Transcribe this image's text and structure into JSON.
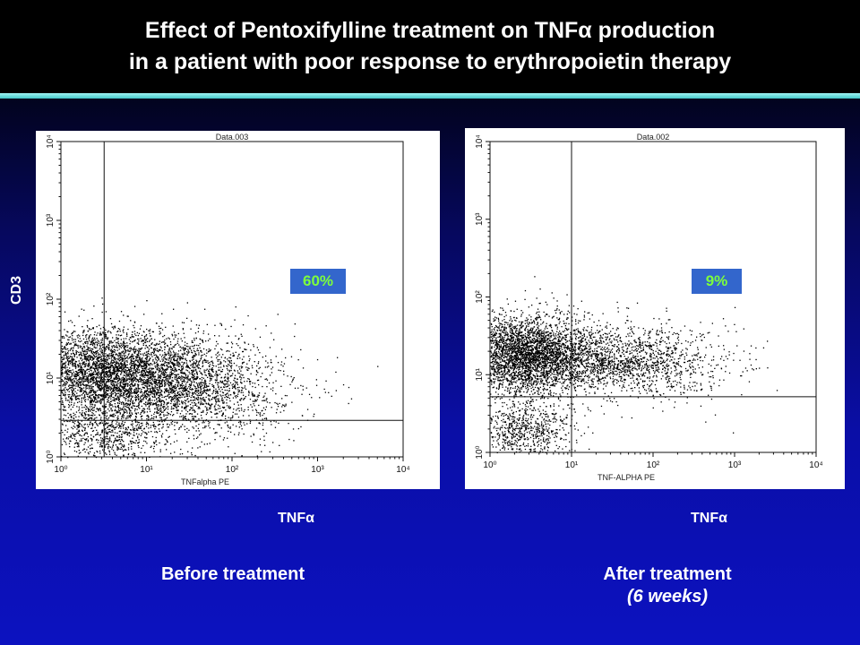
{
  "slide": {
    "title_line1": "Effect of Pentoxifylline treatment on TNFα production",
    "title_line2": "in a patient with poor response to erythropoietin therapy",
    "y_axis_label": "CD3",
    "colors": {
      "title_rule": "#6fe0e0",
      "badge_bg": "#3366cc",
      "badge_text": "#7dff3c"
    }
  },
  "chart_data": [
    {
      "type": "scatter",
      "plot_header": "Data.003",
      "x_axis_title": "TNFalpha PE",
      "xlabel": "TNFα",
      "ylabel": "CD3",
      "scale": "log",
      "xlim": [
        1,
        10000
      ],
      "ylim": [
        1,
        10000
      ],
      "x_tick_labels": [
        "10⁰",
        "10¹",
        "10²",
        "10³",
        "10⁴"
      ],
      "y_tick_labels": [
        "10⁰",
        "10¹",
        "10²",
        "10³",
        "10⁴"
      ],
      "quadrant_gate": {
        "x": 3.2,
        "y": 2.9
      },
      "annotation": "60%",
      "caption": "Before treatment",
      "caption_sub": "",
      "populations": [
        {
          "cx": 2.4,
          "cy": 12,
          "sx": 0.45,
          "sy": 0.28,
          "n": 2600
        },
        {
          "cx": 2.8,
          "cy": 1.9,
          "sx": 0.35,
          "sy": 0.2,
          "n": 700
        },
        {
          "cx": 12,
          "cy": 10,
          "sx": 0.55,
          "sy": 0.3,
          "n": 2600
        },
        {
          "cx": 60,
          "cy": 6,
          "sx": 0.55,
          "sy": 0.35,
          "n": 900
        }
      ]
    },
    {
      "type": "scatter",
      "plot_header": "Data.002",
      "x_axis_title": "TNF-ALPHA PE",
      "xlabel": "TNFα",
      "ylabel": "CD3",
      "scale": "log",
      "xlim": [
        1,
        10000
      ],
      "ylim": [
        1,
        10000
      ],
      "x_tick_labels": [
        "10⁰",
        "10¹",
        "10²",
        "10³",
        "10⁴"
      ],
      "y_tick_labels": [
        "10⁰",
        "10¹",
        "10²",
        "10³",
        "10⁴"
      ],
      "quadrant_gate": {
        "x": 10,
        "y": 5.2
      },
      "annotation": "9%",
      "caption": "After treatment",
      "caption_sub": "(6 weeks)",
      "populations": [
        {
          "cx": 2.6,
          "cy": 18,
          "sx": 0.4,
          "sy": 0.25,
          "n": 3400
        },
        {
          "cx": 2.6,
          "cy": 1.9,
          "sx": 0.3,
          "sy": 0.17,
          "n": 700
        },
        {
          "cx": 25,
          "cy": 16,
          "sx": 0.55,
          "sy": 0.22,
          "n": 1500
        },
        {
          "cx": 200,
          "cy": 14,
          "sx": 0.45,
          "sy": 0.25,
          "n": 350
        }
      ]
    }
  ]
}
